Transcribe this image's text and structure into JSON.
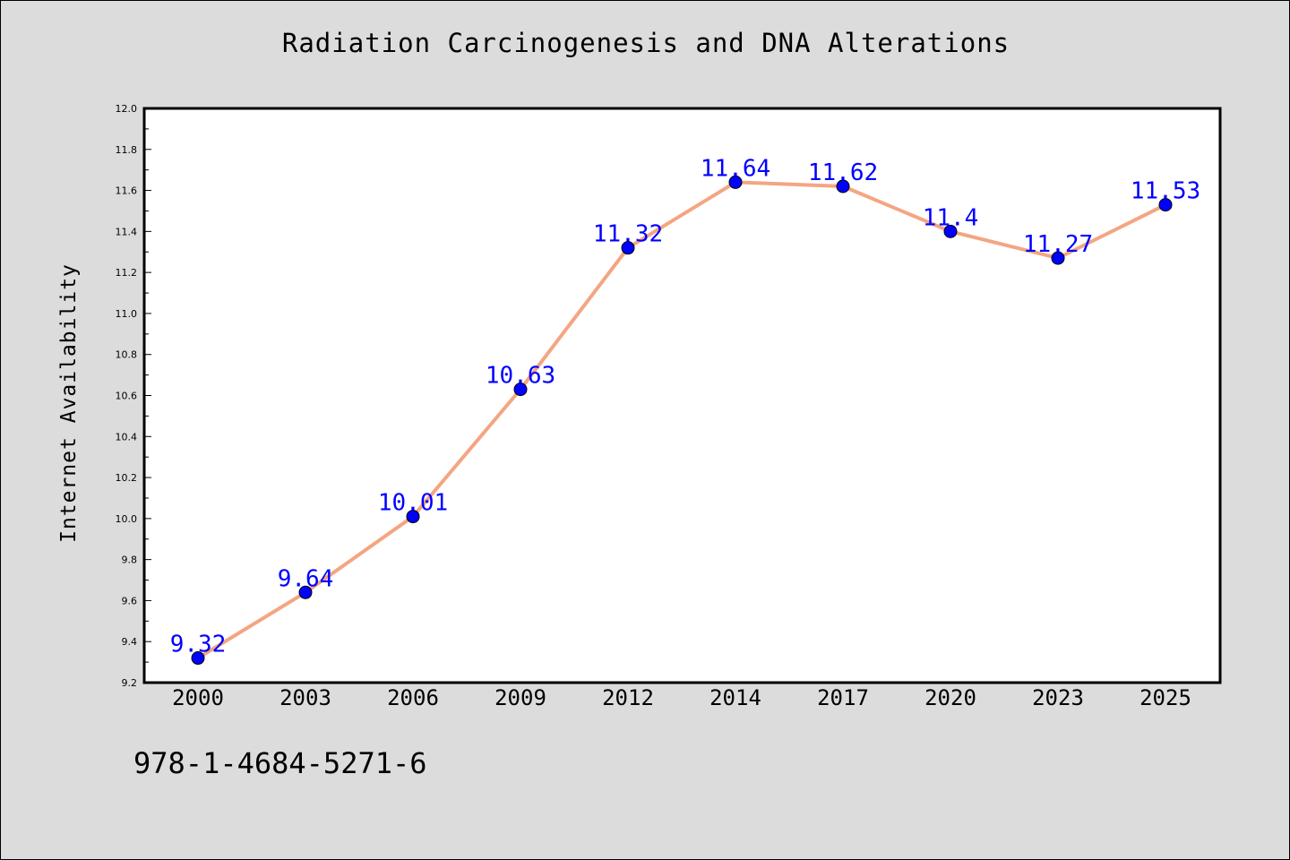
{
  "chart_data": {
    "type": "line",
    "title": "Radiation Carcinogenesis and DNA Alterations",
    "xlabel": "",
    "ylabel": "Internet Availability",
    "categories": [
      "2000",
      "2003",
      "2006",
      "2009",
      "2012",
      "2014",
      "2017",
      "2020",
      "2023",
      "2025"
    ],
    "series": [
      {
        "values": [
          9.32,
          9.64,
          10.01,
          10.63,
          11.32,
          11.64,
          11.62,
          11.4,
          11.27,
          11.53
        ],
        "data_labels": [
          "9.32",
          "9.64",
          "10.01",
          "10.63",
          "11.32",
          "11.64",
          "11.62",
          "11.4",
          "11.27",
          "11.53"
        ],
        "line_color": "#f4a582",
        "marker_color": "#0000ff",
        "label_color": "#0000ff"
      }
    ],
    "ylim": [
      9.2,
      12.0
    ],
    "yticks": [
      "9.2",
      "9.4",
      "9.6",
      "9.8",
      "10.0",
      "10.2",
      "10.4",
      "10.6",
      "10.8",
      "11.0",
      "11.2",
      "11.4",
      "11.6",
      "11.8",
      "12.0"
    ],
    "grid": false,
    "legend": "none"
  },
  "footer": {
    "isbn": "978-1-4684-5271-6"
  },
  "colors": {
    "background": "#dcdcdc",
    "plot_area": "#ffffff"
  }
}
